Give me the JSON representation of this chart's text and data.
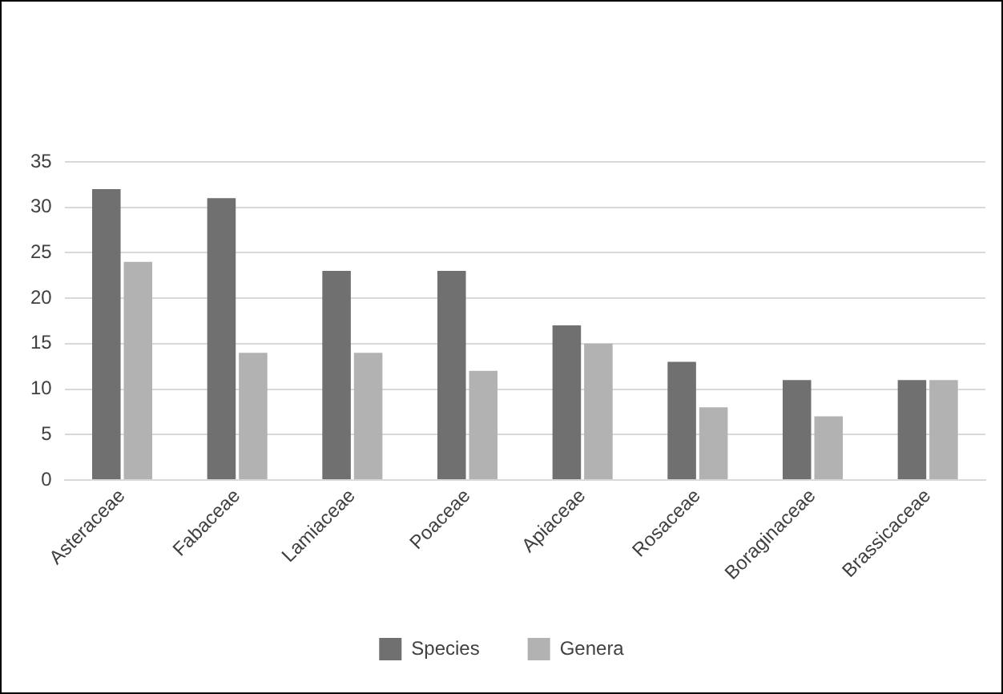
{
  "chart_data": {
    "type": "bar",
    "categories": [
      "Asteraceae",
      "Fabaceae",
      "Lamiaceae",
      "Poaceae",
      "Apiaceae",
      "Rosaceae",
      "Boraginaceae",
      "Brassicaceae"
    ],
    "series": [
      {
        "name": "Species",
        "color": "#707070",
        "values": [
          32,
          31,
          23,
          23,
          17,
          13,
          11,
          11
        ]
      },
      {
        "name": "Genera",
        "color": "#b2b2b2",
        "values": [
          24,
          14,
          14,
          12,
          15,
          8,
          7,
          11
        ]
      }
    ],
    "ylim": [
      0,
      35
    ],
    "yticks": [
      0,
      5,
      10,
      15,
      20,
      25,
      30,
      35
    ],
    "grid": "y",
    "legend": "bottom"
  }
}
